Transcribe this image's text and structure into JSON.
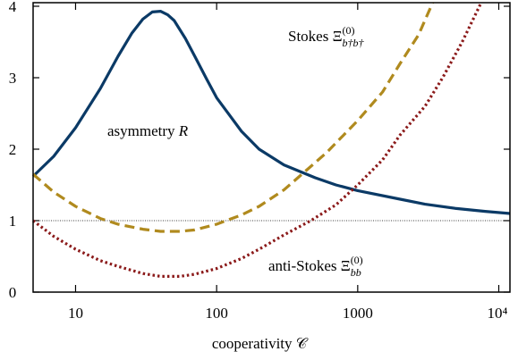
{
  "chart_data": {
    "type": "line",
    "xlabel": "cooperativity 𝒞",
    "xscale": "log",
    "xlim": [
      5,
      12000
    ],
    "ylim": [
      0,
      4.05
    ],
    "xticks": [
      10,
      100,
      1000,
      {
        "value": 10000,
        "label": "10⁴"
      }
    ],
    "yticks": [
      0,
      1,
      2,
      3,
      4
    ],
    "hline": 1,
    "series": [
      {
        "color": "#0b3a66",
        "style": "solid",
        "x": [
          5,
          7,
          10,
          15,
          20,
          25,
          30,
          35,
          40,
          45,
          50,
          60,
          70,
          85,
          100,
          150,
          200,
          300,
          500,
          700,
          1000,
          2000,
          3000,
          5000,
          8000,
          12000
        ],
        "values": [
          1.62,
          1.9,
          2.3,
          2.85,
          3.3,
          3.62,
          3.82,
          3.92,
          3.93,
          3.88,
          3.8,
          3.55,
          3.3,
          2.98,
          2.72,
          2.25,
          2.0,
          1.78,
          1.6,
          1.5,
          1.42,
          1.3,
          1.23,
          1.17,
          1.13,
          1.1
        ]
      },
      {
        "color": "#b08a1e",
        "style": "dashed",
        "x": [
          5,
          7,
          10,
          15,
          20,
          30,
          40,
          55,
          70,
          100,
          150,
          200,
          300,
          430,
          600,
          1000,
          1500,
          2000,
          2700,
          3400
        ],
        "values": [
          1.65,
          1.4,
          1.2,
          1.03,
          0.95,
          0.88,
          0.85,
          0.85,
          0.87,
          0.95,
          1.08,
          1.2,
          1.43,
          1.7,
          1.95,
          2.4,
          2.8,
          3.2,
          3.6,
          4.05
        ]
      },
      {
        "color": "#8b1a1a",
        "style": "dotted",
        "x": [
          5,
          7,
          10,
          15,
          20,
          30,
          40,
          55,
          70,
          100,
          150,
          200,
          300,
          465,
          700,
          1000,
          1500,
          2000,
          3000,
          4000,
          5500,
          7500
        ],
        "values": [
          1.0,
          0.78,
          0.6,
          0.44,
          0.36,
          0.26,
          0.22,
          0.22,
          0.25,
          0.33,
          0.47,
          0.6,
          0.8,
          1.0,
          1.22,
          1.5,
          1.85,
          2.2,
          2.6,
          3.0,
          3.5,
          4.05
        ]
      }
    ],
    "annotations": [
      {
        "text": "Stokes Ξ",
        "sup": "(0)",
        "sub": "b†b†"
      },
      {
        "text": "asymmetry ",
        "var": "R"
      },
      {
        "text": "anti-Stokes Ξ",
        "sup": "(0)",
        "sub": "bb"
      }
    ]
  }
}
